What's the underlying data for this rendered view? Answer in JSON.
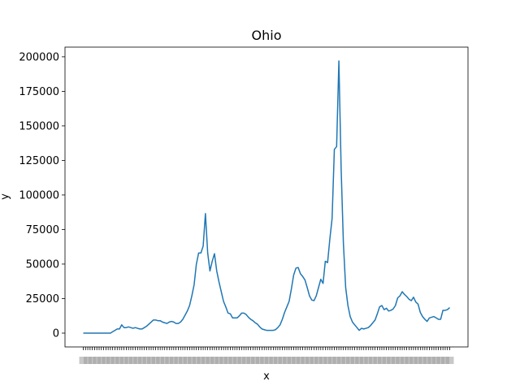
{
  "chart_data": {
    "type": "line",
    "title": "Ohio",
    "xlabel": "x",
    "ylabel": "y",
    "ylim": [
      -10000,
      207000
    ],
    "yticks": [
      0,
      25000,
      50000,
      75000,
      100000,
      125000,
      150000,
      175000,
      200000
    ],
    "ytick_labels": [
      "0",
      "25000",
      "50000",
      "75000",
      "100000",
      "125000",
      "150000",
      "175000",
      "200000"
    ],
    "grid": false,
    "legend": "none",
    "x_tick_labels_overlapping": true,
    "series": [
      {
        "color": "#1f77b4",
        "values": [
          0,
          0,
          0,
          0,
          0,
          0,
          0,
          0,
          0,
          0,
          0,
          0,
          0,
          1000,
          2000,
          3000,
          3000,
          6000,
          4000,
          4000,
          4500,
          4000,
          3500,
          4000,
          3500,
          3000,
          3000,
          4000,
          5000,
          6500,
          8000,
          9500,
          9500,
          9000,
          9000,
          8000,
          7500,
          7000,
          8000,
          8500,
          8000,
          7000,
          7000,
          8000,
          10000,
          13000,
          16000,
          20000,
          27000,
          35000,
          50000,
          58000,
          58000,
          63000,
          86500,
          58000,
          45000,
          52000,
          57500,
          45000,
          37000,
          30000,
          23000,
          19000,
          14500,
          14000,
          11000,
          11000,
          11000,
          12500,
          14500,
          14500,
          13500,
          11500,
          10000,
          9000,
          7500,
          6500,
          4500,
          3000,
          2500,
          2000,
          2000,
          2000,
          2000,
          2500,
          4000,
          6000,
          10000,
          15000,
          19000,
          23000,
          32000,
          42000,
          47000,
          47500,
          43000,
          41000,
          38500,
          33000,
          27000,
          24000,
          23500,
          27000,
          33000,
          39000,
          36000,
          52000,
          51000,
          68000,
          83000,
          133000,
          135000,
          197000,
          119000,
          65000,
          33000,
          20000,
          12000,
          8000,
          6000,
          4000,
          2000,
          3500,
          3000,
          3500,
          4000,
          5500,
          7500,
          9500,
          14000,
          19000,
          20000,
          17000,
          18000,
          16000,
          16500,
          17500,
          20000,
          25500,
          27000,
          30000,
          28000,
          26500,
          24500,
          23500,
          26000,
          22500,
          21000,
          15000,
          12000,
          10000,
          8500,
          11000,
          11500,
          12000,
          11000,
          10000,
          10000,
          16500,
          16500,
          17000,
          18500
        ]
      }
    ]
  }
}
